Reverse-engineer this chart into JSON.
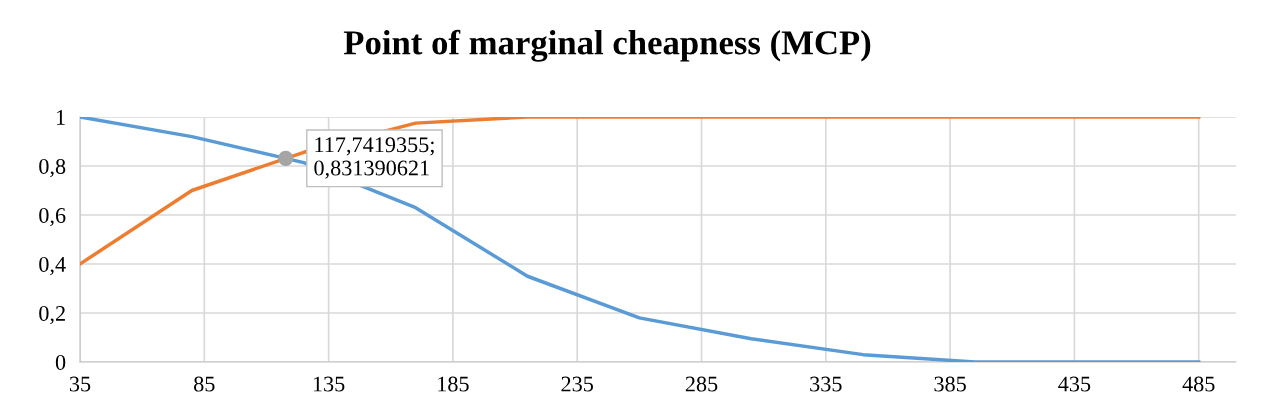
{
  "chart_data": {
    "type": "line",
    "title": "Point of marginal cheapness (MCP)",
    "x": [
      35,
      80,
      125,
      170,
      215,
      260,
      305,
      350,
      395,
      440,
      485
    ],
    "series": [
      {
        "color": "#5b9bd5",
        "values": [
          1,
          0.92,
          0.814,
          0.63,
          0.35,
          0.18,
          0.095,
          0.03,
          0,
          0,
          0
        ]
      },
      {
        "color": "#ed7d31",
        "values": [
          0.4,
          0.7,
          0.856,
          0.975,
          1,
          1,
          1,
          1,
          1,
          1,
          1
        ]
      }
    ],
    "annotations": [
      {
        "text": "117,7419355;\n0,831390621",
        "x": 117.7419355,
        "y": 0.831390621
      }
    ],
    "xlim": [
      35,
      500
    ],
    "xticks": [
      35,
      85,
      135,
      185,
      235,
      285,
      335,
      385,
      435,
      485
    ],
    "ylim": [
      0,
      1
    ],
    "yticks": [
      {
        "value": 0,
        "label": "0"
      },
      {
        "value": 0.2,
        "label": "0,2"
      },
      {
        "value": 0.4,
        "label": "0,4"
      },
      {
        "value": 0.6,
        "label": "0,6"
      },
      {
        "value": 0.8,
        "label": "0,8"
      },
      {
        "value": 1,
        "label": "1"
      }
    ],
    "grid": true,
    "marker": "none",
    "line_style": "solid",
    "legend": false
  }
}
